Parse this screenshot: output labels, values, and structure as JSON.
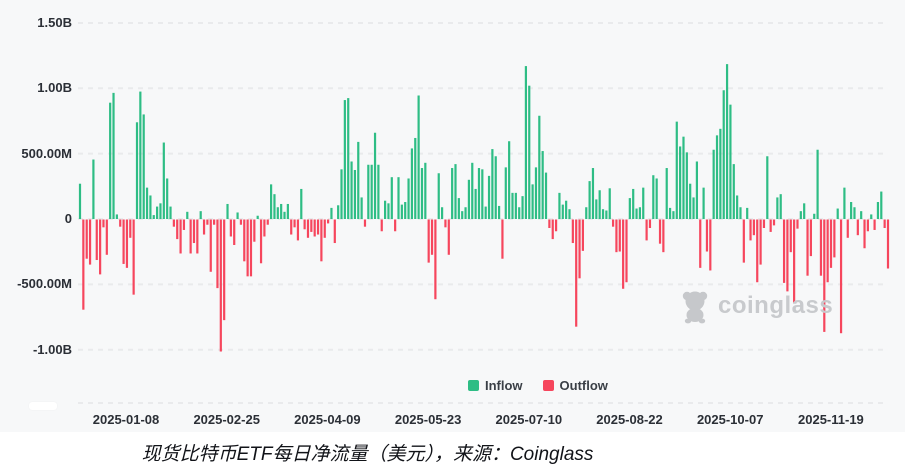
{
  "chart_data": {
    "type": "bar",
    "title": "现货比特币ETF每日净流量（美元），来源：Coinglass",
    "unit": "USD, millions",
    "source": "coinglass",
    "grid": true,
    "legend_position": "bottom",
    "ylim_m": [
      -1400,
      1550
    ],
    "y_ticks": [
      {
        "label": "1.50B",
        "value_m": 1500
      },
      {
        "label": "1.00B",
        "value_m": 1000
      },
      {
        "label": "500.00M",
        "value_m": 500
      },
      {
        "label": "0",
        "value_m": 0
      },
      {
        "label": "-500.00M",
        "value_m": -500
      },
      {
        "label": "-1.00B",
        "value_m": -1000
      }
    ],
    "x_tick_labels": [
      "2025-01-08",
      "2025-02-25",
      "2025-04-09",
      "2025-05-23",
      "2025-07-10",
      "2025-08-22",
      "2025-10-07",
      "2025-11-19"
    ],
    "legend": [
      {
        "label": "Inflow",
        "color": "#2ebd85"
      },
      {
        "label": "Outflow",
        "color": "#f6465d"
      }
    ],
    "inflow_color": "#2ebd85",
    "outflow_color": "#f6465d",
    "values_m": [
      270,
      -690,
      -300,
      -345,
      455,
      -310,
      -420,
      -60,
      -270,
      890,
      965,
      35,
      -55,
      -340,
      -370,
      -140,
      -575,
      740,
      975,
      800,
      240,
      180,
      30,
      95,
      120,
      585,
      310,
      95,
      -55,
      -150,
      -260,
      -80,
      55,
      -260,
      -180,
      -260,
      60,
      -115,
      -40,
      -400,
      -40,
      -525,
      -1010,
      -770,
      115,
      -130,
      -195,
      50,
      -40,
      -320,
      -435,
      -435,
      -170,
      25,
      -335,
      -130,
      -40,
      265,
      190,
      90,
      115,
      55,
      115,
      -115,
      -60,
      -160,
      230,
      -75,
      -140,
      -95,
      -130,
      -115,
      -320,
      -140,
      -30,
      85,
      -180,
      105,
      380,
      910,
      925,
      440,
      375,
      590,
      165,
      -55,
      415,
      415,
      660,
      415,
      -90,
      140,
      120,
      320,
      -90,
      320,
      110,
      130,
      310,
      540,
      620,
      945,
      390,
      430,
      -330,
      -270,
      -610,
      350,
      90,
      -60,
      -270,
      390,
      420,
      160,
      60,
      90,
      300,
      430,
      230,
      390,
      380,
      95,
      330,
      535,
      480,
      100,
      -300,
      395,
      595,
      200,
      200,
      90,
      175,
      1170,
      1020,
      265,
      395,
      790,
      520,
      355,
      -65,
      -150,
      -90,
      200,
      110,
      140,
      75,
      -180,
      -820,
      -450,
      -240,
      90,
      290,
      390,
      150,
      220,
      75,
      65,
      235,
      -55,
      -250,
      -245,
      -530,
      -480,
      160,
      230,
      80,
      90,
      240,
      -160,
      -65,
      335,
      310,
      -185,
      -250,
      390,
      85,
      60,
      745,
      555,
      630,
      510,
      270,
      165,
      440,
      -370,
      240,
      -245,
      -390,
      530,
      640,
      690,
      985,
      1185,
      875,
      420,
      180,
      90,
      -330,
      85,
      -160,
      -120,
      -480,
      -345,
      -65,
      480,
      -95,
      -45,
      165,
      190,
      -485,
      -550,
      -250,
      -635,
      -70,
      60,
      120,
      -430,
      -280,
      40,
      530,
      -430,
      -860,
      -480,
      -370,
      -290,
      80,
      -870,
      240,
      -140,
      130,
      90,
      -120,
      60,
      -220,
      -90,
      35,
      -80,
      130,
      210,
      -65,
      -375
    ]
  },
  "watermark": {
    "text": "coinglass"
  },
  "caption": {
    "text": "现货比特币ETF每日净流量（美元），来源：Coinglass"
  }
}
